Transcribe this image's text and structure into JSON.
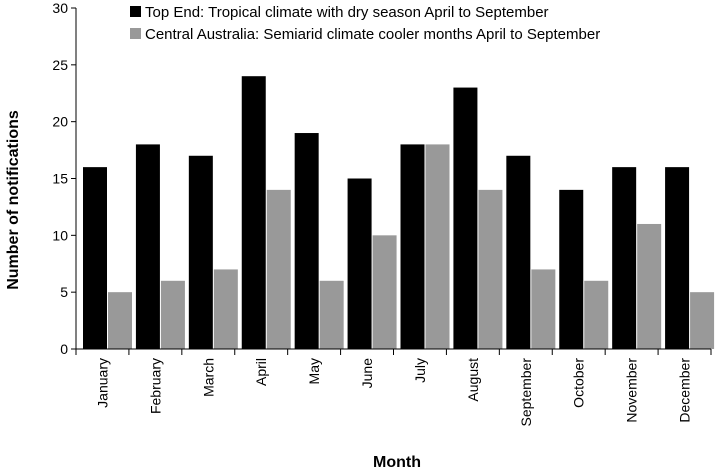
{
  "chart_data": {
    "type": "bar",
    "title": "",
    "xlabel": "Month",
    "ylabel": "Number of notifications",
    "ylim": [
      0,
      30
    ],
    "yticks": [
      0,
      5,
      10,
      15,
      20,
      25,
      30
    ],
    "grid": false,
    "legend_position": "top",
    "categories": [
      "January",
      "February",
      "March",
      "April",
      "May",
      "June",
      "July",
      "August",
      "September",
      "October",
      "November",
      "December"
    ],
    "series": [
      {
        "name": "Top End: Tropical climate with dry season April to September",
        "color": "#000000",
        "values": [
          16,
          18,
          17,
          24,
          19,
          15,
          18,
          23,
          17,
          14,
          16,
          16
        ]
      },
      {
        "name": "Central Australia: Semiarid climate cooler months April to September",
        "color": "#999999",
        "values": [
          5,
          6,
          7,
          14,
          6,
          10,
          18,
          14,
          7,
          6,
          11,
          5
        ]
      }
    ]
  }
}
